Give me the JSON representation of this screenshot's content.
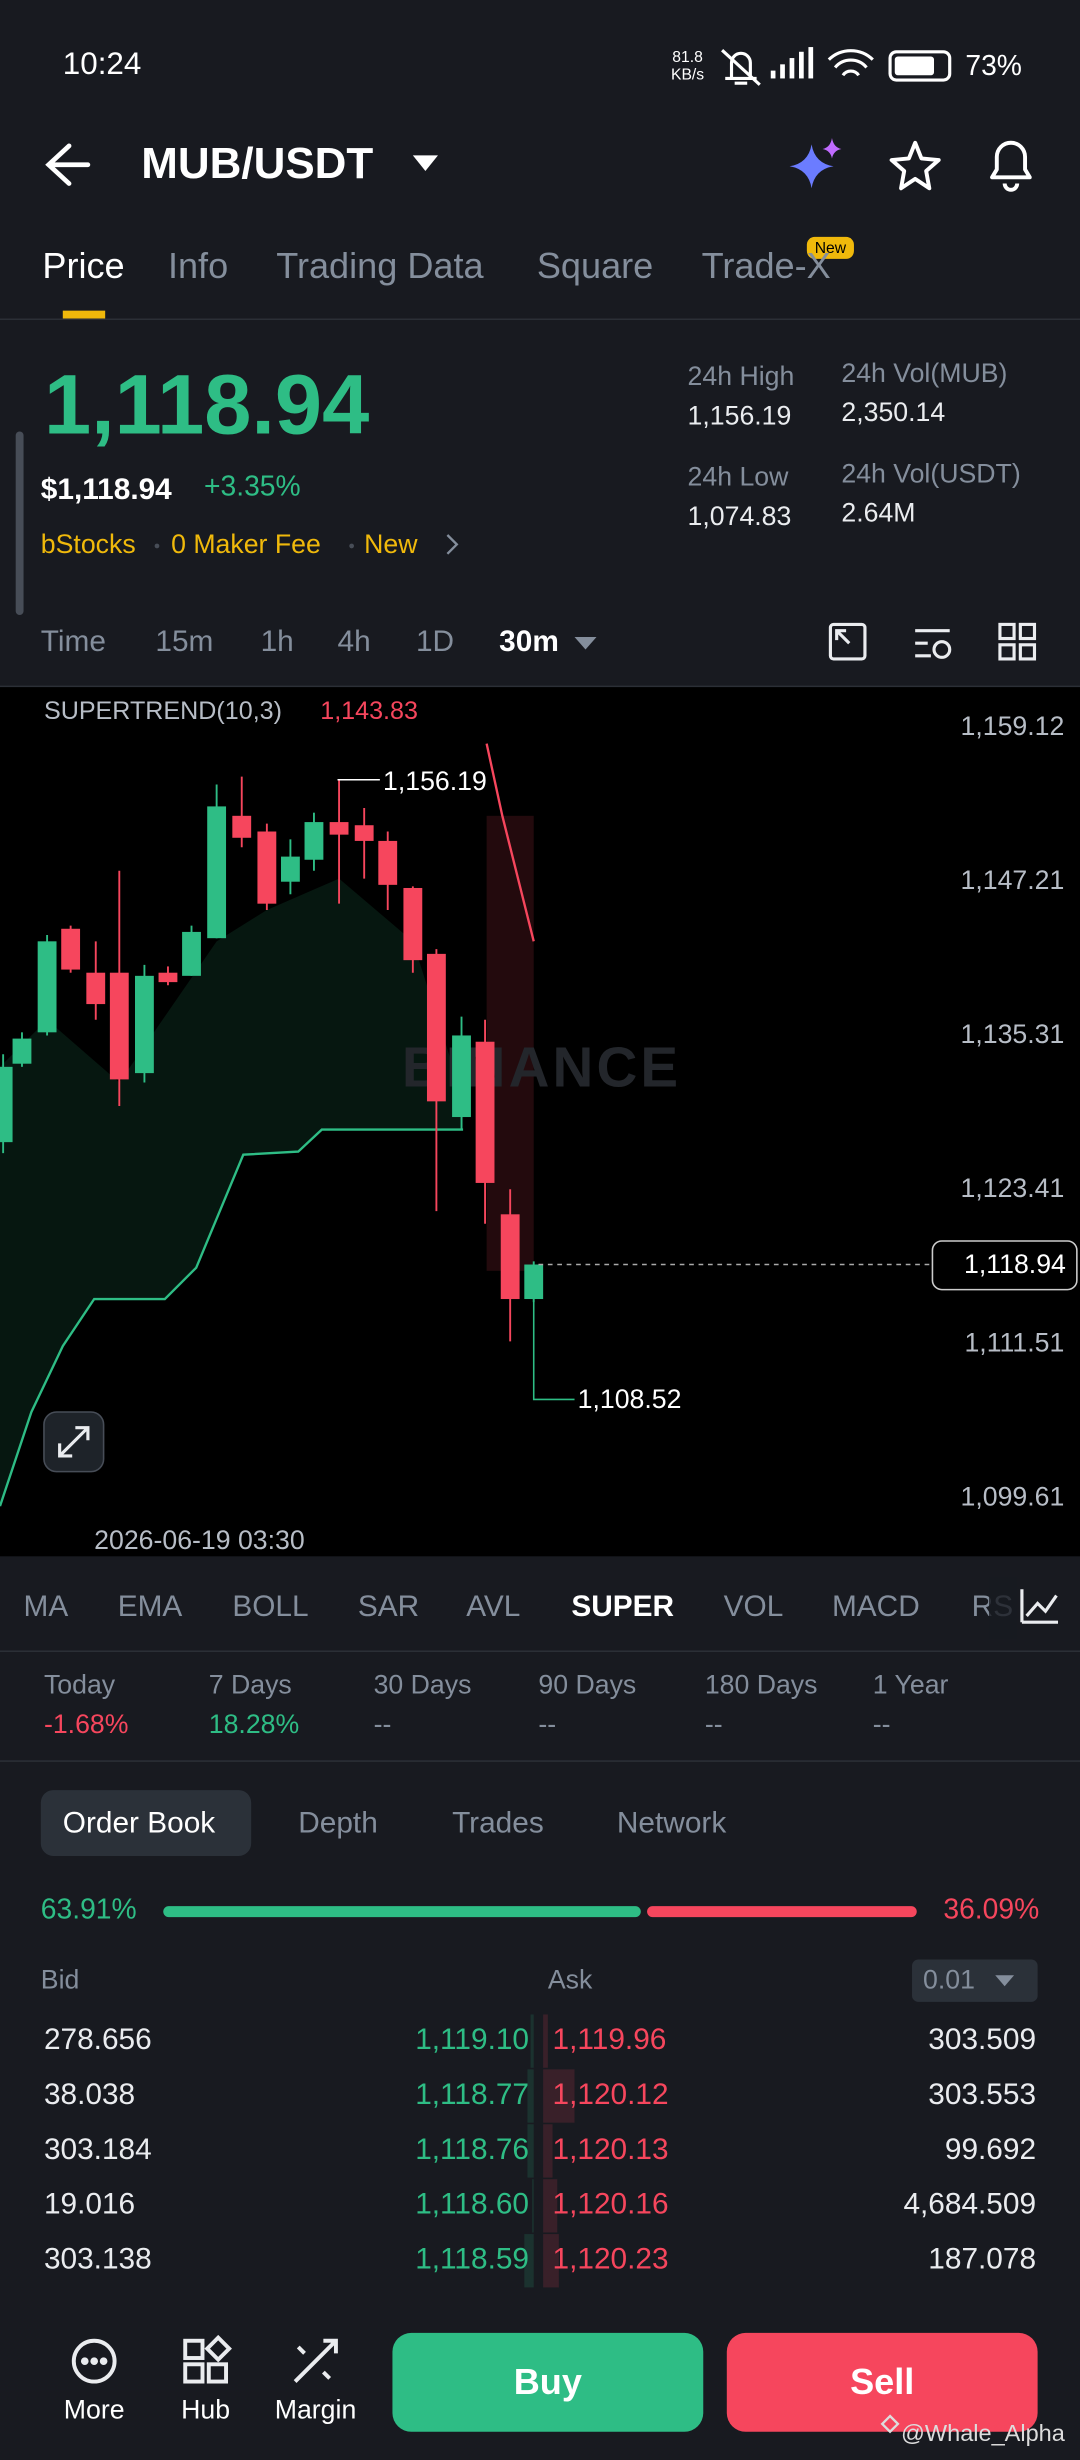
{
  "status_bar": {
    "time": "10:24",
    "network_speed": "81.8",
    "network_unit": "KB/s",
    "battery": "73%"
  },
  "header": {
    "pair": "MUB/USDT"
  },
  "tabs": {
    "items": [
      "Price",
      "Info",
      "Trading Data",
      "Square",
      "Trade-X"
    ],
    "badge": "New"
  },
  "ticker": {
    "price": "1,118.94",
    "usd_price": "$1,118.94",
    "change": "+3.35%",
    "tags": [
      "bStocks",
      "0 Maker Fee",
      "New"
    ],
    "stats": [
      {
        "label": "24h High",
        "value": "1,156.19"
      },
      {
        "label": "24h Vol(MUB)",
        "value": "2,350.14"
      },
      {
        "label": "24h Low",
        "value": "1,074.83"
      },
      {
        "label": "24h Vol(USDT)",
        "value": "2.64M"
      }
    ]
  },
  "intervals": {
    "items": [
      "Time",
      "15m",
      "1h",
      "4h",
      "1D",
      "30m"
    ]
  },
  "chart": {
    "indicator": "SUPERTREND(10,3)",
    "indicator_value": "1,143.83",
    "price_axis": [
      "1,159.12",
      "1,147.21",
      "1,135.31",
      "1,123.41",
      "1,111.51",
      "1,099.61"
    ],
    "current_price": "1,118.94",
    "high_label": "1,156.19",
    "low_label": "1,108.52",
    "timestamp": "2026-06-19 03:30",
    "watermark": "BINANCE"
  },
  "indicators": {
    "items": [
      "MA",
      "EMA",
      "BOLL",
      "SAR",
      "AVL",
      "SUPER",
      "VOL",
      "MACD",
      "RS"
    ]
  },
  "performance": [
    {
      "period": "Today",
      "value": "-1.68%"
    },
    {
      "period": "7 Days",
      "value": "18.28%"
    },
    {
      "period": "30 Days",
      "value": "--"
    },
    {
      "period": "90 Days",
      "value": "--"
    },
    {
      "period": "180 Days",
      "value": "--"
    },
    {
      "period": "1 Year",
      "value": "--"
    }
  ],
  "order_book": {
    "tabs": [
      "Order Book",
      "Depth",
      "Trades",
      "Network"
    ],
    "bid_ratio": "63.91%",
    "ask_ratio": "36.09%",
    "bid_header": "Bid",
    "ask_header": "Ask",
    "precision": "0.01",
    "rows": [
      [
        "278.656",
        "1,119.10",
        "1,119.96",
        "303.509"
      ],
      [
        "38.038",
        "1,118.77",
        "1,120.12",
        "303.553"
      ],
      [
        "303.184",
        "1,118.76",
        "1,120.13",
        "99.692"
      ],
      [
        "19.016",
        "1,118.60",
        "1,120.16",
        "4,684.509"
      ],
      [
        "303.138",
        "1,118.59",
        "1,120.23",
        "187.078"
      ]
    ]
  },
  "bottom_bar": {
    "items": [
      "More",
      "Hub",
      "Margin"
    ],
    "buy": "Buy",
    "sell": "Sell",
    "watermark": "@Whale_Alpha"
  }
}
